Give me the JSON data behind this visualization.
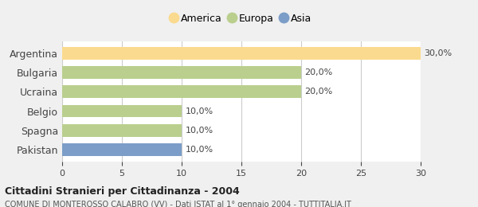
{
  "categories": [
    "Argentina",
    "Bulgaria",
    "Ucraina",
    "Belgio",
    "Spagna",
    "Pakistan"
  ],
  "values": [
    30.0,
    20.0,
    20.0,
    10.0,
    10.0,
    10.0
  ],
  "colors": [
    "#FADA8E",
    "#BACF8E",
    "#BACF8E",
    "#BACF8E",
    "#BACF8E",
    "#7B9DC7"
  ],
  "legend": [
    {
      "label": "America",
      "color": "#FADA8E"
    },
    {
      "label": "Europa",
      "color": "#BACF8E"
    },
    {
      "label": "Asia",
      "color": "#7B9DC7"
    }
  ],
  "xlim": [
    0,
    30
  ],
  "xticks": [
    0,
    5,
    10,
    15,
    20,
    25,
    30
  ],
  "value_labels": [
    "30,0%",
    "20,0%",
    "20,0%",
    "10,0%",
    "10,0%",
    "10,0%"
  ],
  "title": "Cittadini Stranieri per Cittadinanza - 2004",
  "subtitle": "COMUNE DI MONTEROSSO CALABRO (VV) - Dati ISTAT al 1° gennaio 2004 - TUTTITALIA.IT",
  "bg_color": "#f0f0f0",
  "bar_bg_color": "#ffffff"
}
